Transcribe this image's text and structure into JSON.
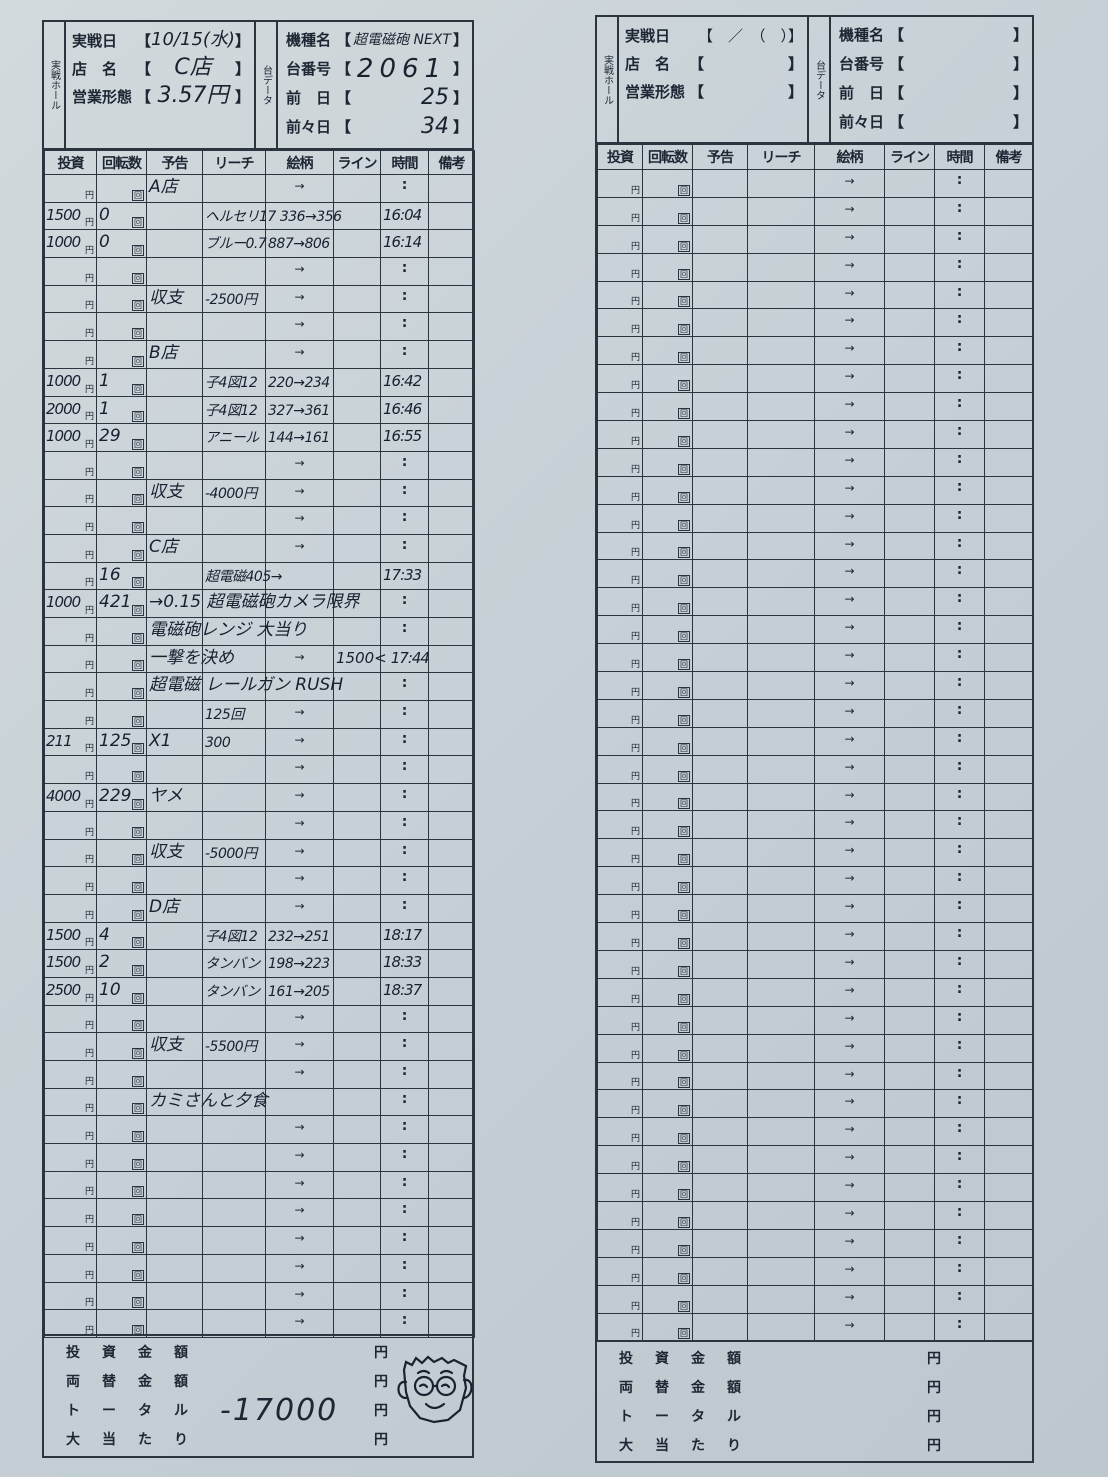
{
  "printed": {
    "hall_label": "実戦ホール",
    "dai_label": "台データ",
    "fields_hall": [
      "実戦日",
      "店　名",
      "営業形態"
    ],
    "fields_dai": [
      "機種名",
      "台番号",
      "前　日",
      "前々日"
    ],
    "bracket_open": "【",
    "bracket_close": "】",
    "date_template": "【　／　（　）】",
    "columns": [
      "投資",
      "回転数",
      "予告",
      "リーチ",
      "絵柄",
      "ライン",
      "時間",
      "備考"
    ],
    "unit_yen": "円",
    "unit_kai": "回",
    "arrow": "→",
    "colon": ":",
    "summary_labels": [
      "投資金額",
      "両替金額",
      "トータル",
      "大当たり"
    ]
  },
  "sheets": [
    {
      "hall": {
        "date": "10/15(水)",
        "store": "C店",
        "business": "3.57円"
      },
      "dai": {
        "model": "超電磁砲 NEXT",
        "number": "2061",
        "prev_day": "25",
        "prev2_day": "34"
      },
      "summary_values": [
        "",
        "",
        "-17000",
        ""
      ],
      "has_face_doodle": true,
      "rows": [
        {
          "yokoku": "A店"
        },
        {
          "invest": "1500",
          "spins": "0",
          "reach": "ヘルセリ17",
          "zugara": "336→356",
          "time": "16:04"
        },
        {
          "invest": "1000",
          "spins": "0",
          "reach": "ブルー0.7",
          "zugara": "887→806",
          "time": "16:14"
        },
        {},
        {
          "yokoku": "収支",
          "reach": "-2500円"
        },
        {},
        {
          "yokoku": "B店"
        },
        {
          "invest": "1000",
          "spins": "1",
          "reach": "子4図12",
          "zugara": "220→234",
          "time": "16:42"
        },
        {
          "invest": "2000",
          "spins": "1",
          "reach": "子4図12",
          "zugara": "327→361",
          "time": "16:46"
        },
        {
          "invest": "1000",
          "spins": "29",
          "reach": "アニール",
          "zugara": "144→161",
          "time": "16:55"
        },
        {},
        {
          "yokoku": "収支",
          "reach": "-4000円"
        },
        {},
        {
          "yokoku": "C店"
        },
        {
          "spins": "16",
          "reach": "超電磁405→",
          "time": "17:33"
        },
        {
          "invest": "1000",
          "spins": "421",
          "yokoku": "→0.15 超電磁砲カメラ限界"
        },
        {
          "yokoku": "電磁砲レンジ 大当り"
        },
        {
          "yokoku": "一撃を決め",
          "line": "1500<",
          "time": "17:44"
        },
        {
          "yokoku": "超電磁 レールガン RUSH"
        },
        {
          "reach": "125回"
        },
        {
          "invest": "211",
          "spins": "125",
          "yokoku": "X1",
          "reach": "300"
        },
        {},
        {
          "invest": "4000",
          "spins": "229",
          "yokoku": "ヤメ"
        },
        {},
        {
          "yokoku": "収支",
          "reach": "-5000円"
        },
        {},
        {
          "yokoku": "D店"
        },
        {
          "invest": "1500",
          "spins": "4",
          "reach": "子4図12",
          "zugara": "232→251",
          "time": "18:17"
        },
        {
          "invest": "1500",
          "spins": "2",
          "reach": "タンバン",
          "zugara": "198→223",
          "time": "18:33"
        },
        {
          "invest": "2500",
          "spins": "10",
          "reach": "タンバン",
          "zugara": "161→205",
          "time": "18:37"
        },
        {},
        {
          "yokoku": "収支",
          "reach": "-5500円"
        },
        {},
        {
          "yokoku": "カミさんと夕食"
        },
        {},
        {},
        {},
        {},
        {},
        {},
        {},
        {}
      ]
    },
    {
      "hall": {
        "date": "",
        "store": "",
        "business": ""
      },
      "dai": {
        "model": "",
        "number": "",
        "prev_day": "",
        "prev2_day": ""
      },
      "summary_values": [
        "",
        "",
        "",
        ""
      ],
      "has_face_doodle": false,
      "rows": [
        {},
        {},
        {},
        {},
        {},
        {},
        {},
        {},
        {},
        {},
        {},
        {},
        {},
        {},
        {},
        {},
        {},
        {},
        {},
        {},
        {},
        {},
        {},
        {},
        {},
        {},
        {},
        {},
        {},
        {},
        {},
        {},
        {},
        {},
        {},
        {},
        {},
        {},
        {},
        {},
        {},
        {}
      ]
    }
  ]
}
